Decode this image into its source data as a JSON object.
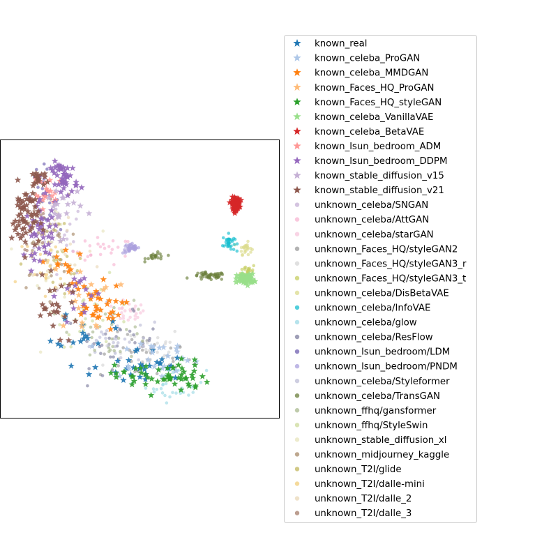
{
  "chart_data": {
    "type": "scatter",
    "title": "",
    "xlabel": "",
    "ylabel": "",
    "xticks": [],
    "yticks": [],
    "grid": false,
    "legend_position": "right, outside plot",
    "xlim": [
      0,
      100
    ],
    "ylim": [
      0,
      100
    ],
    "series": [
      {
        "name": "known_real",
        "marker": "star",
        "color": "#1f77b4",
        "clusters": [
          {
            "cx": 50,
            "cy": 18,
            "sx": 14,
            "sy": 6,
            "n": 30
          },
          {
            "cx": 30,
            "cy": 32,
            "sx": 8,
            "sy": 6,
            "n": 15
          }
        ]
      },
      {
        "name": "known_celeba_ProGAN",
        "marker": "star",
        "color": "#aec7e8",
        "clusters": [
          {
            "cx": 55,
            "cy": 22,
            "sx": 14,
            "sy": 6,
            "n": 25
          }
        ]
      },
      {
        "name": "known_celeba_MMDGAN",
        "marker": "star",
        "color": "#ff7f0e",
        "clusters": [
          {
            "cx": 34,
            "cy": 40,
            "sx": 8,
            "sy": 7,
            "n": 35
          },
          {
            "cx": 22,
            "cy": 55,
            "sx": 6,
            "sy": 6,
            "n": 12
          }
        ]
      },
      {
        "name": "known_Faces_HQ_ProGAN",
        "marker": "star",
        "color": "#ffbb78",
        "clusters": [
          {
            "cx": 30,
            "cy": 42,
            "sx": 10,
            "sy": 10,
            "n": 15
          }
        ]
      },
      {
        "name": "known_Faces_HQ_styleGAN",
        "marker": "star",
        "color": "#2ca02c",
        "clusters": [
          {
            "cx": 58,
            "cy": 15,
            "sx": 14,
            "sy": 5,
            "n": 55
          }
        ]
      },
      {
        "name": "known_celeba_VanillaVAE",
        "marker": "star",
        "color": "#98df8a",
        "clusters": [
          {
            "cx": 88,
            "cy": 50,
            "sx": 2.5,
            "sy": 1.5,
            "n": 70
          }
        ]
      },
      {
        "name": "known_celeba_BetaVAE",
        "marker": "star",
        "color": "#d62728",
        "clusters": [
          {
            "cx": 84.5,
            "cy": 77,
            "sx": 1.2,
            "sy": 1.8,
            "n": 100
          }
        ]
      },
      {
        "name": "known_lsun_bedroom_ADM",
        "marker": "star",
        "color": "#ff9896",
        "clusters": [
          {
            "cx": 18,
            "cy": 80,
            "sx": 5,
            "sy": 6,
            "n": 20
          }
        ]
      },
      {
        "name": "known_lsun_bedroom_DDPM",
        "marker": "star",
        "color": "#9467bd",
        "clusters": [
          {
            "cx": 23,
            "cy": 86,
            "sx": 4,
            "sy": 5,
            "n": 45
          },
          {
            "cx": 15,
            "cy": 67,
            "sx": 5,
            "sy": 8,
            "n": 40
          },
          {
            "cx": 28,
            "cy": 45,
            "sx": 6,
            "sy": 8,
            "n": 15
          }
        ]
      },
      {
        "name": "known_stable_diffusion_v15",
        "marker": "star",
        "color": "#c5b0d5",
        "clusters": [
          {
            "cx": 22,
            "cy": 75,
            "sx": 6,
            "sy": 8,
            "n": 20
          }
        ]
      },
      {
        "name": "known_stable_diffusion_v21",
        "marker": "star",
        "color": "#8c564b",
        "clusters": [
          {
            "cx": 9,
            "cy": 72,
            "sx": 4,
            "sy": 10,
            "n": 60
          },
          {
            "cx": 14,
            "cy": 86,
            "sx": 3,
            "sy": 3,
            "n": 15
          },
          {
            "cx": 20,
            "cy": 40,
            "sx": 7,
            "sy": 8,
            "n": 25
          }
        ]
      },
      {
        "name": "unknown_celeba/SNGAN",
        "marker": "dot",
        "color": "#c5b0d5",
        "clusters": [
          {
            "cx": 22,
            "cy": 65,
            "sx": 8,
            "sy": 12,
            "n": 25
          }
        ]
      },
      {
        "name": "unknown_celeba/AttGAN",
        "marker": "dot",
        "color": "#f7b6d2",
        "clusters": [
          {
            "cx": 37,
            "cy": 60,
            "sx": 9,
            "sy": 4,
            "n": 25
          }
        ]
      },
      {
        "name": "unknown_celeba/starGAN",
        "marker": "dot",
        "color": "#f7c6dc",
        "clusters": [
          {
            "cx": 46,
            "cy": 38,
            "sx": 5,
            "sy": 3,
            "n": 25
          }
        ]
      },
      {
        "name": "unknown_Faces_HQ/styleGAN2",
        "marker": "dot",
        "color": "#999999",
        "clusters": [
          {
            "cx": 52,
            "cy": 22,
            "sx": 14,
            "sy": 7,
            "n": 40
          }
        ]
      },
      {
        "name": "unknown_Faces_HQ/styleGAN3_r",
        "marker": "dot",
        "color": "#d6d6d6",
        "clusters": [
          {
            "cx": 50,
            "cy": 25,
            "sx": 14,
            "sy": 7,
            "n": 30
          }
        ]
      },
      {
        "name": "unknown_Faces_HQ/styleGAN3_t",
        "marker": "dot",
        "color": "#c6ce62",
        "clusters": [
          {
            "cx": 89,
            "cy": 53,
            "sx": 2.2,
            "sy": 2,
            "n": 25
          }
        ]
      },
      {
        "name": "unknown_celeba/DisBetaVAE",
        "marker": "dot",
        "color": "#dbdb8d",
        "clusters": [
          {
            "cx": 88,
            "cy": 61,
            "sx": 1.8,
            "sy": 1.8,
            "n": 25
          }
        ]
      },
      {
        "name": "unknown_celeba/InfoVAE",
        "marker": "dot",
        "color": "#17becf",
        "clusters": [
          {
            "cx": 82,
            "cy": 63,
            "sx": 1.8,
            "sy": 2.5,
            "n": 35
          }
        ]
      },
      {
        "name": "unknown_celeba/glow",
        "marker": "dot",
        "color": "#9edae5",
        "clusters": [
          {
            "cx": 63,
            "cy": 12,
            "sx": 9,
            "sy": 5,
            "n": 30
          }
        ]
      },
      {
        "name": "unknown_celeba/ResFlow",
        "marker": "dot",
        "color": "#7f7f9f",
        "clusters": [
          {
            "cx": 40,
            "cy": 28,
            "sx": 14,
            "sy": 8,
            "n": 30
          }
        ]
      },
      {
        "name": "unknown_lsun_bedroom/LDM",
        "marker": "dot",
        "color": "#6f5fb0",
        "clusters": [
          {
            "cx": 15,
            "cy": 80,
            "sx": 5,
            "sy": 8,
            "n": 25
          }
        ]
      },
      {
        "name": "unknown_lsun_bedroom/PNDM",
        "marker": "dot",
        "color": "#aaa0dd",
        "clusters": [
          {
            "cx": 47,
            "cy": 61,
            "sx": 2.5,
            "sy": 1.5,
            "n": 40
          }
        ]
      },
      {
        "name": "unknown_celeba/Styleformer",
        "marker": "dot",
        "color": "#bdbdd7",
        "clusters": [
          {
            "cx": 42,
            "cy": 28,
            "sx": 14,
            "sy": 7,
            "n": 30
          }
        ]
      },
      {
        "name": "unknown_celeba/TransGAN",
        "marker": "dot",
        "color": "#6b7f3c",
        "clusters": [
          {
            "cx": 75,
            "cy": 51,
            "sx": 5,
            "sy": 1.2,
            "n": 50
          },
          {
            "cx": 56,
            "cy": 58,
            "sx": 3,
            "sy": 1.2,
            "n": 22
          }
        ]
      },
      {
        "name": "unknown_ffhq/gansformer",
        "marker": "dot",
        "color": "#a9b98f",
        "clusters": [
          {
            "cx": 40,
            "cy": 32,
            "sx": 12,
            "sy": 9,
            "n": 30
          }
        ]
      },
      {
        "name": "unknown_ffhq/StyleSwin",
        "marker": "dot",
        "color": "#cedb9c",
        "clusters": [
          {
            "cx": 35,
            "cy": 38,
            "sx": 12,
            "sy": 10,
            "n": 25
          }
        ]
      },
      {
        "name": "unknown_stable_diffusion_xl",
        "marker": "dot",
        "color": "#e7e4bc",
        "clusters": [
          {
            "cx": 18,
            "cy": 60,
            "sx": 10,
            "sy": 15,
            "n": 30
          }
        ]
      },
      {
        "name": "unknown_midjourney_kaggle",
        "marker": "dot",
        "color": "#a88b6a",
        "clusters": [
          {
            "cx": 15,
            "cy": 62,
            "sx": 8,
            "sy": 15,
            "n": 30
          }
        ]
      },
      {
        "name": "unknown_T2I/glide",
        "marker": "dot",
        "color": "#c2b75e",
        "clusters": [
          {
            "cx": 20,
            "cy": 55,
            "sx": 10,
            "sy": 15,
            "n": 25
          }
        ]
      },
      {
        "name": "unknown_T2I/dalle-mini",
        "marker": "dot",
        "color": "#f2cd7a",
        "clusters": [
          {
            "cx": 18,
            "cy": 52,
            "sx": 10,
            "sy": 14,
            "n": 25
          }
        ]
      },
      {
        "name": "unknown_T2I/dalle_2",
        "marker": "dot",
        "color": "#ead8b8",
        "clusters": [
          {
            "cx": 22,
            "cy": 60,
            "sx": 10,
            "sy": 15,
            "n": 25
          }
        ]
      },
      {
        "name": "unknown_T2I/dalle_3",
        "marker": "dot",
        "color": "#a67d6b",
        "clusters": [
          {
            "cx": 14,
            "cy": 72,
            "sx": 6,
            "sy": 12,
            "n": 25
          }
        ]
      }
    ]
  }
}
